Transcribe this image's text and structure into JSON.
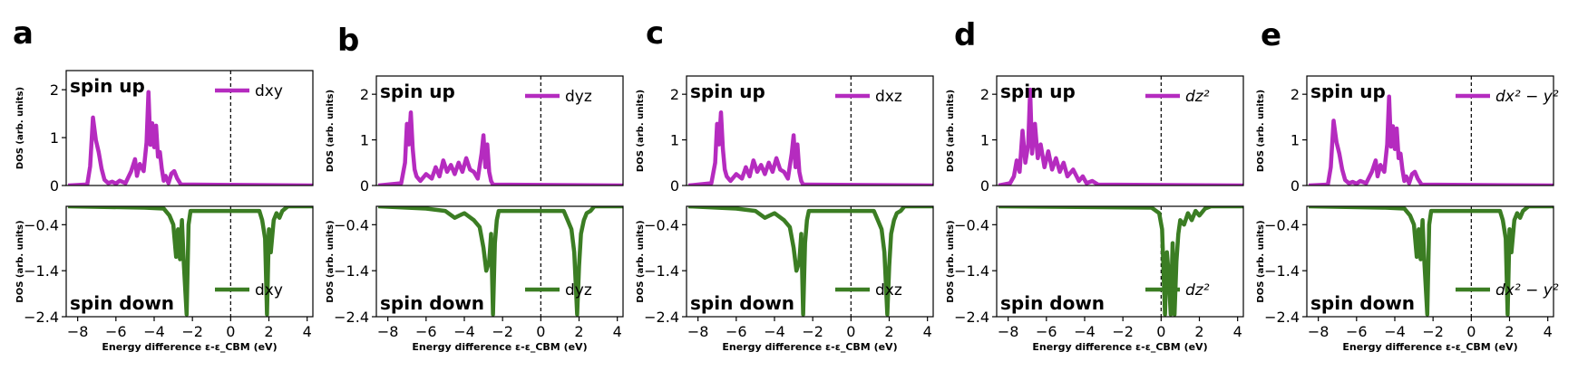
{
  "chart_data": [
    {
      "type": "line",
      "panel_label": "a",
      "orbital": "dxy",
      "xlabel": "Energy difference ε-ε_CBM (eV)",
      "xlim": [
        -8.6,
        4.3
      ],
      "xticks": [
        "−8",
        "−6",
        "−4",
        "−2",
        "0",
        "2",
        "4"
      ],
      "ref_line_x": 0,
      "up": {
        "title": "spin up",
        "legend": "dxy",
        "color": "#b52bbf",
        "ylabel": "DOS (arb. units)",
        "ylim": [
          0,
          2.4
        ],
        "yticks": [
          "0",
          "1",
          "2"
        ],
        "x": [
          -8.5,
          -7.5,
          -7.35,
          -7.2,
          -7.05,
          -6.9,
          -6.75,
          -6.6,
          -6.4,
          -6.2,
          -6.0,
          -5.8,
          -5.5,
          -5.2,
          -5.0,
          -4.9,
          -4.75,
          -4.55,
          -4.4,
          -4.3,
          -4.2,
          -4.1,
          -4.0,
          -3.9,
          -3.8,
          -3.7,
          -3.6,
          -3.5,
          -3.4,
          -3.25,
          -3.1,
          -2.95,
          -2.8,
          -2.6,
          4.3
        ],
        "y": [
          0,
          0.02,
          0.4,
          1.42,
          0.95,
          0.7,
          0.35,
          0.12,
          0.05,
          0.08,
          0.04,
          0.1,
          0.05,
          0.3,
          0.55,
          0.2,
          0.45,
          0.3,
          0.9,
          1.95,
          0.85,
          1.3,
          0.8,
          1.25,
          0.6,
          0.7,
          0.35,
          0.1,
          0.2,
          0.05,
          0.25,
          0.3,
          0.15,
          0.02,
          0
        ]
      },
      "down": {
        "title": "spin down",
        "legend": "dxy",
        "color": "#3b7d23",
        "ylabel": "DOS (arb. units)",
        "ylim": [
          -2.4,
          0
        ],
        "yticks": [
          "−0.4",
          "−1.4",
          "−2.4"
        ],
        "x": [
          -8.5,
          -4.5,
          -3.5,
          -3.2,
          -3.0,
          -2.85,
          -2.75,
          -2.65,
          -2.55,
          -2.45,
          -2.3,
          -2.2,
          -2.1,
          1.5,
          1.65,
          1.8,
          1.9,
          2.0,
          2.1,
          2.25,
          2.4,
          2.55,
          2.7,
          2.85,
          3.0,
          4.3
        ],
        "y": [
          0,
          -0.03,
          -0.05,
          -0.2,
          -0.4,
          -1.1,
          -0.5,
          -1.15,
          -0.3,
          -1.25,
          -2.35,
          -0.4,
          -0.1,
          -0.1,
          -0.3,
          -0.7,
          -2.35,
          -0.5,
          -1.0,
          -0.3,
          -0.15,
          -0.25,
          -0.1,
          -0.05,
          0,
          0
        ]
      }
    },
    {
      "type": "line",
      "panel_label": "b",
      "orbital": "dyz",
      "xlabel": "Energy difference ε-ε_CBM (eV)",
      "xlim": [
        -8.6,
        4.3
      ],
      "xticks": [
        "−8",
        "−6",
        "−4",
        "−2",
        "0",
        "2",
        "4"
      ],
      "ref_line_x": 0,
      "up": {
        "title": "spin up",
        "legend": "dyz",
        "color": "#b52bbf",
        "ylabel": "DOS (arb. units)",
        "ylim": [
          0,
          2.4
        ],
        "yticks": [
          "0",
          "1",
          "2"
        ],
        "x": [
          -8.5,
          -7.3,
          -7.1,
          -7.0,
          -6.9,
          -6.8,
          -6.7,
          -6.6,
          -6.5,
          -6.3,
          -6.0,
          -5.7,
          -5.5,
          -5.3,
          -5.1,
          -4.9,
          -4.7,
          -4.5,
          -4.3,
          -4.1,
          -3.9,
          -3.7,
          -3.5,
          -3.3,
          -3.1,
          -3.0,
          -2.9,
          -2.8,
          -2.7,
          -2.6,
          -2.5,
          4.3
        ],
        "y": [
          0,
          0.05,
          0.5,
          1.35,
          0.9,
          1.6,
          0.8,
          0.35,
          0.2,
          0.1,
          0.25,
          0.15,
          0.4,
          0.2,
          0.55,
          0.3,
          0.45,
          0.25,
          0.5,
          0.3,
          0.6,
          0.35,
          0.3,
          0.15,
          0.7,
          1.1,
          0.4,
          0.9,
          0.3,
          0.1,
          0.02,
          0
        ]
      },
      "down": {
        "title": "spin down",
        "legend": "dyz",
        "color": "#3b7d23",
        "ylabel": "DOS (arb. units)",
        "ylim": [
          -2.4,
          0
        ],
        "yticks": [
          "−0.4",
          "−1.4",
          "−2.4"
        ],
        "x": [
          -8.5,
          -6.0,
          -5.0,
          -4.5,
          -4.0,
          -3.5,
          -3.2,
          -3.0,
          -2.85,
          -2.7,
          -2.6,
          -2.5,
          -2.4,
          -2.3,
          -2.2,
          1.2,
          1.4,
          1.6,
          1.75,
          1.9,
          2.0,
          2.1,
          2.25,
          2.4,
          2.6,
          2.8,
          4.3
        ],
        "y": [
          0,
          -0.05,
          -0.1,
          -0.25,
          -0.15,
          -0.3,
          -0.45,
          -0.9,
          -1.4,
          -1.2,
          -0.6,
          -2.35,
          -0.8,
          -0.3,
          -0.1,
          -0.1,
          -0.3,
          -0.5,
          -1.0,
          -2.35,
          -1.3,
          -0.6,
          -0.3,
          -0.15,
          -0.1,
          0,
          0
        ]
      }
    },
    {
      "type": "line",
      "panel_label": "c",
      "orbital": "dxz",
      "xlabel": "Energy difference ε-ε_CBM (eV)",
      "xlim": [
        -8.6,
        4.3
      ],
      "xticks": [
        "−8",
        "−6",
        "−4",
        "−2",
        "0",
        "2",
        "4"
      ],
      "ref_line_x": 0,
      "up": {
        "title": "spin up",
        "legend": "dxz",
        "color": "#b52bbf",
        "ylabel": "DOS (arb. units)",
        "ylim": [
          0,
          2.4
        ],
        "yticks": [
          "0",
          "1",
          "2"
        ],
        "x": [
          -8.5,
          -7.3,
          -7.1,
          -7.0,
          -6.9,
          -6.8,
          -6.7,
          -6.6,
          -6.5,
          -6.3,
          -6.0,
          -5.7,
          -5.5,
          -5.3,
          -5.1,
          -4.9,
          -4.7,
          -4.5,
          -4.3,
          -4.1,
          -3.9,
          -3.7,
          -3.5,
          -3.3,
          -3.1,
          -3.0,
          -2.9,
          -2.8,
          -2.7,
          -2.6,
          -2.5,
          4.3
        ],
        "y": [
          0,
          0.05,
          0.5,
          1.35,
          0.9,
          1.6,
          0.8,
          0.35,
          0.2,
          0.1,
          0.25,
          0.15,
          0.4,
          0.2,
          0.55,
          0.3,
          0.45,
          0.25,
          0.5,
          0.3,
          0.6,
          0.35,
          0.3,
          0.15,
          0.7,
          1.1,
          0.4,
          0.9,
          0.3,
          0.1,
          0.02,
          0
        ]
      },
      "down": {
        "title": "spin down",
        "legend": "dxz",
        "color": "#3b7d23",
        "ylabel": "DOS (arb. units)",
        "ylim": [
          -2.4,
          0
        ],
        "yticks": [
          "−0.4",
          "−1.4",
          "−2.4"
        ],
        "x": [
          -8.5,
          -6.0,
          -5.0,
          -4.5,
          -4.0,
          -3.5,
          -3.2,
          -3.0,
          -2.85,
          -2.7,
          -2.6,
          -2.5,
          -2.4,
          -2.3,
          -2.2,
          1.2,
          1.4,
          1.6,
          1.75,
          1.9,
          2.0,
          2.1,
          2.25,
          2.4,
          2.6,
          2.8,
          4.3
        ],
        "y": [
          0,
          -0.05,
          -0.1,
          -0.25,
          -0.15,
          -0.3,
          -0.45,
          -0.9,
          -1.4,
          -1.2,
          -0.6,
          -2.35,
          -0.8,
          -0.3,
          -0.1,
          -0.1,
          -0.3,
          -0.5,
          -1.0,
          -2.35,
          -1.3,
          -0.6,
          -0.3,
          -0.15,
          -0.1,
          0,
          0
        ]
      }
    },
    {
      "type": "line",
      "panel_label": "d",
      "orbital": "dz²",
      "xlabel": "Energy difference ε-ε_CBM (eV)",
      "xlim": [
        -8.6,
        4.3
      ],
      "xticks": [
        "−8",
        "−6",
        "−4",
        "−2",
        "0",
        "2",
        "4"
      ],
      "ref_line_x": 0,
      "up": {
        "title": "spin up",
        "legend": "dz²",
        "color": "#b52bbf",
        "ylabel": "DOS (arb. units)",
        "ylim": [
          0,
          2.4
        ],
        "yticks": [
          "0",
          "1",
          "2"
        ],
        "x": [
          -8.5,
          -7.9,
          -7.7,
          -7.55,
          -7.4,
          -7.25,
          -7.1,
          -6.95,
          -6.85,
          -6.75,
          -6.6,
          -6.45,
          -6.3,
          -6.1,
          -5.9,
          -5.7,
          -5.5,
          -5.3,
          -5.1,
          -4.9,
          -4.6,
          -4.3,
          -4.1,
          -3.9,
          -3.6,
          -3.3,
          4.3
        ],
        "y": [
          0,
          0.05,
          0.2,
          0.55,
          0.3,
          1.2,
          0.5,
          0.9,
          2.1,
          0.7,
          1.35,
          0.6,
          0.9,
          0.4,
          0.75,
          0.35,
          0.6,
          0.3,
          0.5,
          0.2,
          0.35,
          0.1,
          0.2,
          0.05,
          0.1,
          0.02,
          0
        ]
      },
      "down": {
        "title": "spin down",
        "legend": "dz²",
        "color": "#3b7d23",
        "ylabel": "DOS (arb. units)",
        "ylim": [
          -2.4,
          0
        ],
        "yticks": [
          "−0.4",
          "−1.4",
          "−2.4"
        ],
        "x": [
          -8.5,
          -3.0,
          -0.5,
          -0.1,
          0.05,
          0.2,
          0.3,
          0.4,
          0.5,
          0.6,
          0.7,
          0.8,
          0.9,
          1.0,
          1.2,
          1.4,
          1.6,
          1.8,
          2.0,
          2.3,
          2.6,
          4.3
        ],
        "y": [
          0,
          -0.02,
          -0.03,
          -0.15,
          -0.5,
          -2.35,
          -1.0,
          -1.5,
          -2.35,
          -0.8,
          -2.35,
          -1.2,
          -0.6,
          -0.3,
          -0.4,
          -0.15,
          -0.3,
          -0.1,
          -0.2,
          -0.05,
          0,
          0
        ]
      }
    },
    {
      "type": "line",
      "panel_label": "e",
      "orbital": "dx²−y²",
      "xlabel": "Energy difference ε-ε_CBM (eV)",
      "xlim": [
        -8.6,
        4.3
      ],
      "xticks": [
        "−8",
        "−6",
        "−4",
        "−2",
        "0",
        "2",
        "4"
      ],
      "ref_line_x": 0,
      "up": {
        "title": "spin up",
        "legend": "dx² − y²",
        "color": "#b52bbf",
        "ylabel": "DOS (arb. units)",
        "ylim": [
          0,
          2.4
        ],
        "yticks": [
          "0",
          "1",
          "2"
        ],
        "x": [
          -8.5,
          -7.5,
          -7.35,
          -7.2,
          -7.05,
          -6.9,
          -6.75,
          -6.6,
          -6.4,
          -6.2,
          -6.0,
          -5.8,
          -5.5,
          -5.2,
          -5.0,
          -4.9,
          -4.75,
          -4.55,
          -4.4,
          -4.3,
          -4.2,
          -4.1,
          -4.0,
          -3.9,
          -3.8,
          -3.7,
          -3.6,
          -3.5,
          -3.4,
          -3.25,
          -3.1,
          -2.95,
          -2.8,
          -2.6,
          4.3
        ],
        "y": [
          0,
          0.02,
          0.4,
          1.42,
          0.95,
          0.7,
          0.35,
          0.12,
          0.05,
          0.08,
          0.04,
          0.1,
          0.05,
          0.3,
          0.55,
          0.2,
          0.45,
          0.3,
          0.9,
          1.95,
          0.85,
          1.3,
          0.8,
          1.25,
          0.6,
          0.7,
          0.35,
          0.1,
          0.2,
          0.05,
          0.25,
          0.3,
          0.15,
          0.02,
          0
        ]
      },
      "down": {
        "title": "spin down",
        "legend": "dx² − y²",
        "color": "#3b7d23",
        "ylabel": "DOS (arb. units)",
        "ylim": [
          -2.4,
          0
        ],
        "yticks": [
          "−0.4",
          "−1.4",
          "−2.4"
        ],
        "x": [
          -8.5,
          -4.5,
          -3.5,
          -3.2,
          -3.0,
          -2.85,
          -2.75,
          -2.65,
          -2.55,
          -2.45,
          -2.3,
          -2.2,
          -2.1,
          1.5,
          1.65,
          1.8,
          1.9,
          2.0,
          2.1,
          2.25,
          2.4,
          2.55,
          2.7,
          2.85,
          3.0,
          4.3
        ],
        "y": [
          0,
          -0.03,
          -0.05,
          -0.2,
          -0.4,
          -1.1,
          -0.5,
          -1.15,
          -0.3,
          -1.25,
          -2.35,
          -0.4,
          -0.1,
          -0.1,
          -0.3,
          -0.7,
          -2.35,
          -0.5,
          -1.0,
          -0.3,
          -0.15,
          -0.25,
          -0.1,
          -0.05,
          0,
          0
        ]
      }
    }
  ]
}
